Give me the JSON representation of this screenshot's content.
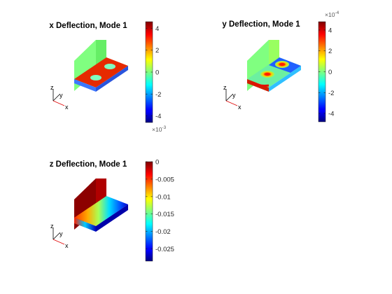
{
  "chart_data": [
    {
      "type": "heatmap",
      "title": "x Deflection, Mode 1",
      "colormap": "jet",
      "colorbar": {
        "ticks": [
          4,
          2,
          0,
          -2,
          -4
        ],
        "range": [
          -4.6,
          4.6
        ],
        "multiplier_base": "×10",
        "multiplier_exp": "-3",
        "multiplier_position": "bottom"
      },
      "triad_labels": [
        "z",
        "y",
        "x"
      ],
      "surface": {
        "plate": "red",
        "wall": "green",
        "holes": "cyan"
      }
    },
    {
      "type": "heatmap",
      "title": "y Deflection, Mode 1",
      "colormap": "jet",
      "colorbar": {
        "ticks": [
          4,
          2,
          0,
          -2,
          -4
        ],
        "range": [
          -4.8,
          4.8
        ],
        "multiplier_base": "×10",
        "multiplier_exp": "-4",
        "multiplier_position": "top"
      },
      "triad_labels": [
        "z",
        "y",
        "x"
      ],
      "surface": {
        "plate": "mixed",
        "wall": "green",
        "holes": "yellow-red rings"
      }
    },
    {
      "type": "heatmap",
      "title": "z Deflection, Mode 1",
      "colormap": "jet",
      "colorbar": {
        "ticks": [
          "0",
          "-0.005",
          "-0.01",
          "-0.015",
          "-0.02",
          "-0.025"
        ],
        "tick_values": [
          0,
          -0.005,
          -0.01,
          -0.015,
          -0.02,
          -0.025
        ],
        "range": [
          -0.0285,
          0
        ],
        "multiplier_base": "",
        "multiplier_exp": "",
        "multiplier_position": "none"
      },
      "triad_labels": [
        "z",
        "y",
        "x"
      ],
      "surface": {
        "plate": "red to blue gradient",
        "wall": "dark red",
        "holes": "none"
      }
    }
  ]
}
